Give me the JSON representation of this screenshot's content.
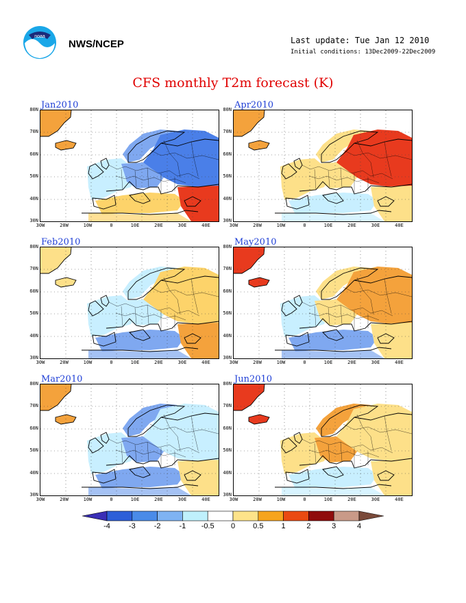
{
  "header": {
    "org": "NWS/NCEP",
    "last_update": "Last update: Tue Jan 12 2010",
    "initial_conditions": "Initial conditions: 13Dec2009-22Dec2009"
  },
  "title": "CFS monthly T2m forecast (K)",
  "axes": {
    "lat": [
      "80N",
      "70N",
      "60N",
      "50N",
      "40N",
      "30N"
    ],
    "lon": [
      "30W",
      "20W",
      "10W",
      "0",
      "10E",
      "20E",
      "30E",
      "40E"
    ]
  },
  "panels": [
    {
      "month": "Jan2010",
      "colors": {
        "north": "#7fa8f0",
        "east": "#4a7fe8",
        "west": "#c8efff",
        "med": "#fdd36a",
        "se": "#e83a1e",
        "green": "#f4a23c"
      }
    },
    {
      "month": "Feb2010",
      "colors": {
        "north": "#c8efff",
        "east": "#fdd36a",
        "west": "#c8efff",
        "med": "#7fa8f0",
        "se": "#f4a23c",
        "green": "#fde089"
      }
    },
    {
      "month": "Mar2010",
      "colors": {
        "north": "#7fa8f0",
        "east": "#c8efff",
        "west": "#c8efff",
        "med": "#7fa8f0",
        "se": "#fde089",
        "green": "#f4a23c"
      }
    },
    {
      "month": "Apr2010",
      "colors": {
        "north": "#fde089",
        "east": "#e83a1e",
        "west": "#fde089",
        "med": "#c8efff",
        "se": "#fde089",
        "green": "#f4a23c"
      }
    },
    {
      "month": "May2010",
      "colors": {
        "north": "#fde089",
        "east": "#f4a23c",
        "west": "#c8efff",
        "med": "#7fa8f0",
        "se": "#fde089",
        "green": "#e83a1e"
      }
    },
    {
      "month": "Jun2010",
      "colors": {
        "north": "#f4a23c",
        "east": "#fde089",
        "west": "#fde089",
        "med": "#c8efff",
        "se": "#fde089",
        "green": "#e83a1e"
      }
    }
  ],
  "colorbar": {
    "ticks": [
      "-4",
      "-3",
      "-2",
      "-1",
      "-0.5",
      "0",
      "0.5",
      "1",
      "2",
      "3",
      "4"
    ],
    "colors": [
      "#3a2fb6",
      "#2d5fd8",
      "#4a8be8",
      "#7fb3f2",
      "#bff0fc",
      "#ffffff",
      "#fde38a",
      "#f6a41e",
      "#ea4a12",
      "#8f0c0c",
      "#c99a88",
      "#7a4a3a"
    ]
  }
}
